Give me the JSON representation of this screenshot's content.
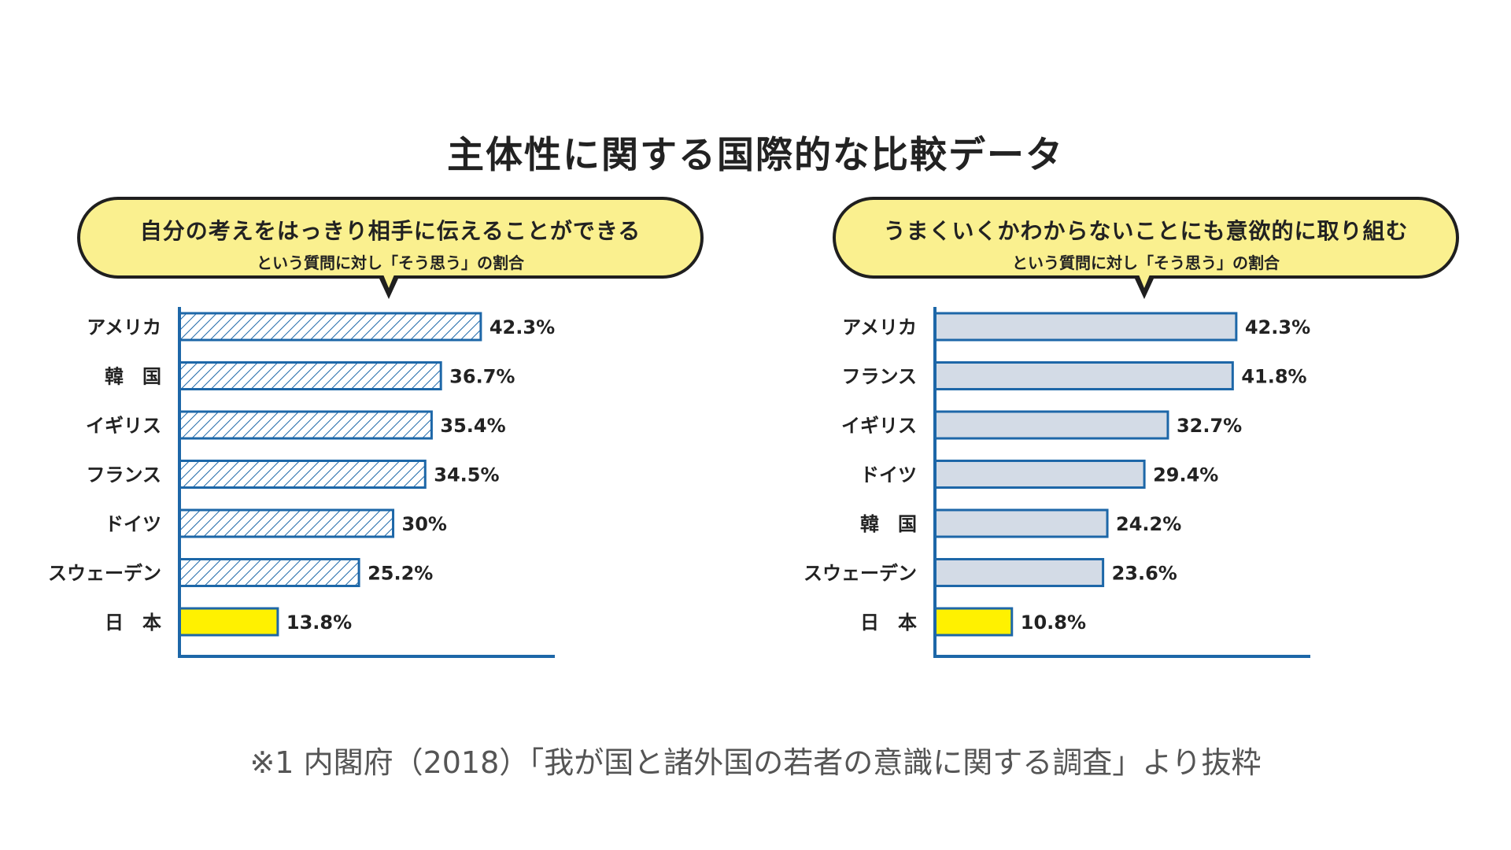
{
  "title": "主体性に関する国際的な比較データ",
  "colors": {
    "axis": "#1d67a8",
    "hatch_fill": "#ffffff",
    "hatch_line": "#1d67a8",
    "solid_fill": "#d3dbe6",
    "japan_fill": "#fff100",
    "bubble": "#faf08f"
  },
  "chart_data": [
    {
      "type": "bar",
      "orientation": "horizontal",
      "title": "自分の考えをはっきり相手に伝えることができる",
      "subtitle": "という質問に対し「そう思う」の割合",
      "bar_style": "hatched",
      "categories": [
        "アメリカ",
        "韓　国",
        "イギリス",
        "フランス",
        "ドイツ",
        "スウェーデン",
        "日　本"
      ],
      "values": [
        42.3,
        36.7,
        35.4,
        34.5,
        30,
        25.2,
        13.8
      ],
      "value_labels": [
        "42.3%",
        "36.7%",
        "35.4%",
        "34.5%",
        "30%",
        "25.2%",
        "13.8%"
      ],
      "highlight": "日　本",
      "xlim": [
        0,
        52.7
      ]
    },
    {
      "type": "bar",
      "orientation": "horizontal",
      "title": "うまくいくかわからないことにも意欲的に取り組む",
      "subtitle": "という質問に対し「そう思う」の割合",
      "bar_style": "solid",
      "categories": [
        "アメリカ",
        "フランス",
        "イギリス",
        "ドイツ",
        "韓　国",
        "スウェーデン",
        "日　本"
      ],
      "values": [
        42.3,
        41.8,
        32.7,
        29.4,
        24.2,
        23.6,
        10.8
      ],
      "value_labels": [
        "42.3%",
        "41.8%",
        "32.7%",
        "29.4%",
        "24.2%",
        "23.6%",
        "10.8%"
      ],
      "highlight": "日　本",
      "xlim": [
        0,
        52.7
      ]
    }
  ],
  "footnote": "※1 内閣府（2018）「我が国と諸外国の若者の意識に関する調査」より抜粋"
}
